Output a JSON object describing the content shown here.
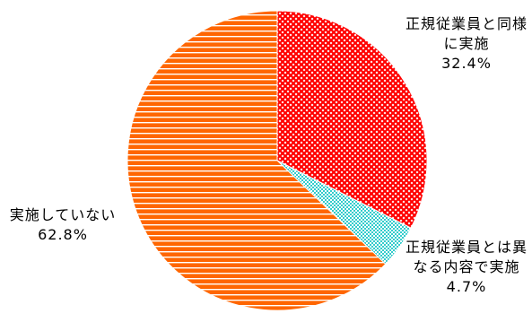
{
  "chart_data": {
    "type": "pie",
    "unit": "%",
    "title": "",
    "slices": [
      {
        "label": "正規従業員と同様に実施",
        "value": 32.4,
        "value_text": "32.4%",
        "color": "#ff0000",
        "pattern": "crosshatch-red"
      },
      {
        "label": "正規従業員とは異なる内容で実施",
        "value": 4.7,
        "value_text": "4.7%",
        "color": "#33cccc",
        "pattern": "checker-cyan"
      },
      {
        "label": "実施していない",
        "value": 62.8,
        "value_text": "62.8%",
        "color": "#ff6600",
        "pattern": "horizontal-stripes-orange"
      }
    ],
    "legend": "none",
    "start_angle": "12 o'clock",
    "direction": "clockwise"
  }
}
